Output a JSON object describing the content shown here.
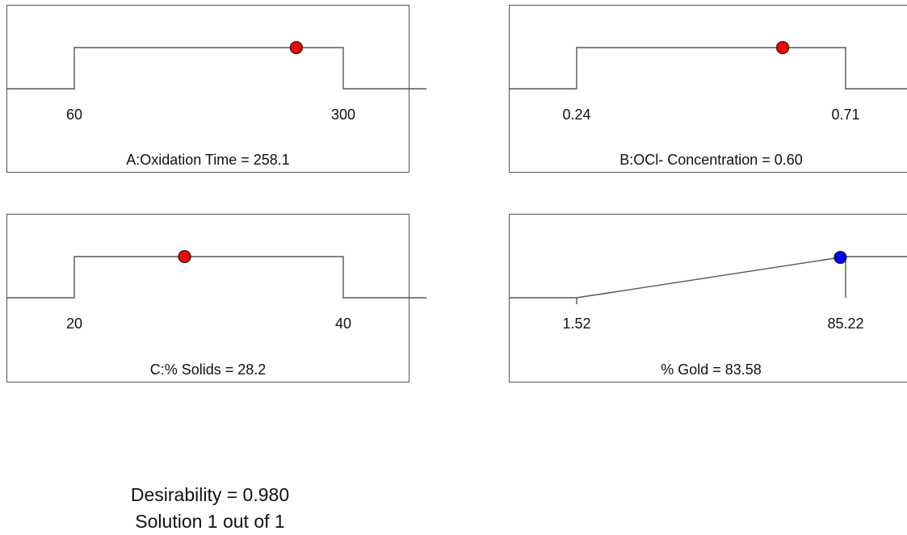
{
  "chart_data": [
    {
      "type": "desirability-ramp",
      "title": "A:Oxidation Time = 258.1",
      "goal": "in range",
      "low": 60,
      "high": 300,
      "tick_labels": [
        "60",
        "300"
      ],
      "value": 258.1,
      "marker_color": "#ff0000"
    },
    {
      "type": "desirability-ramp",
      "title": "B:OCl- Concentration = 0.60",
      "goal": "in range",
      "low": 0.24,
      "high": 0.71,
      "tick_labels": [
        "0.24",
        "0.71"
      ],
      "value": 0.6,
      "marker_color": "#ff0000"
    },
    {
      "type": "desirability-ramp",
      "title": "C:% Solids = 28.2",
      "goal": "in range",
      "low": 20,
      "high": 40,
      "tick_labels": [
        "20",
        "40"
      ],
      "value": 28.2,
      "marker_color": "#ff0000"
    },
    {
      "type": "desirability-ramp",
      "title": "% Gold = 83.58",
      "goal": "maximize",
      "low": 1.52,
      "high": 85.22,
      "tick_labels": [
        "1.52",
        "85.22"
      ],
      "value": 83.58,
      "marker_color": "#0000ff"
    }
  ],
  "footer": {
    "desirability": "Desirability = 0.980",
    "solution": "Solution 1 out of 1"
  },
  "colors": {
    "line": "#555555",
    "marker_outline": "#222222"
  }
}
